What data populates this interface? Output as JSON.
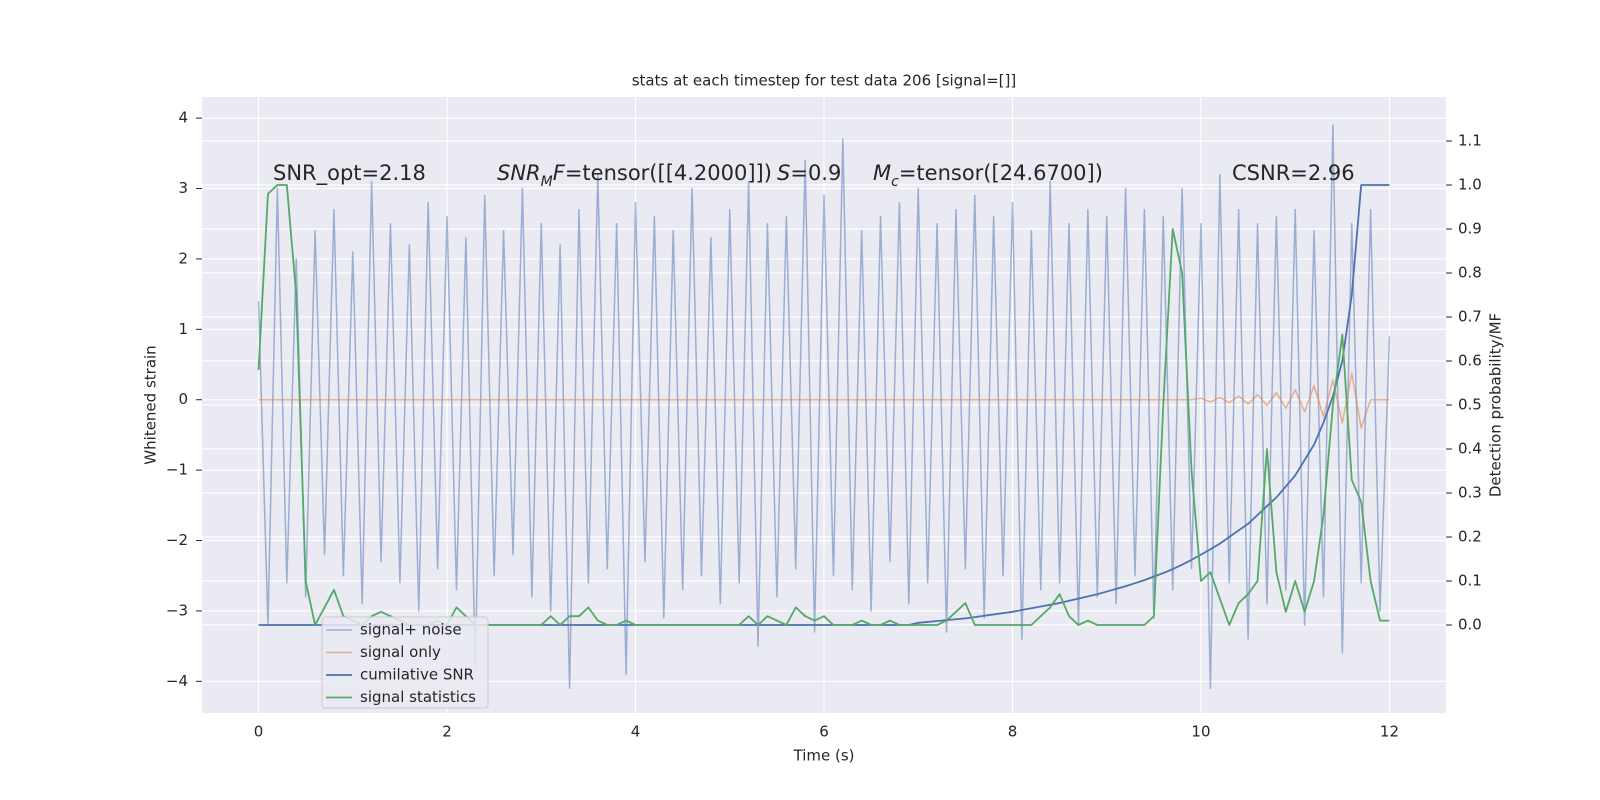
{
  "chart_data": {
    "type": "line",
    "title": "stats at each timestep for test data 206 [signal=[]]",
    "x_label": "Time (s)",
    "y_label": "Whitened strain",
    "y2_label": "Detection probability/MF",
    "annotations": [
      "SNR_opt=2.18",
      [
        "SNR",
        "M",
        "F",
        "=tensor([[4.2000]])"
      ],
      [
        "S",
        "=0.9"
      ],
      [
        "M",
        "c",
        "=tensor([24.6700])"
      ],
      "CSNR=2.96"
    ],
    "x": [
      0,
      0.1,
      0.2,
      0.3,
      0.4,
      0.5,
      0.6,
      0.7,
      0.8,
      0.9,
      1,
      1.1,
      1.2,
      1.3,
      1.4,
      1.5,
      1.6,
      1.7,
      1.8,
      1.9,
      2,
      2.1,
      2.2,
      2.3,
      2.4,
      2.5,
      2.6,
      2.7,
      2.8,
      2.9,
      3,
      3.1,
      3.2,
      3.3,
      3.4,
      3.5,
      3.6,
      3.7,
      3.8,
      3.9,
      4,
      4.1,
      4.2,
      4.3,
      4.4,
      4.5,
      4.6,
      4.7,
      4.8,
      4.9,
      5,
      5.1,
      5.2,
      5.3,
      5.4,
      5.5,
      5.6,
      5.7,
      5.8,
      5.9,
      6,
      6.1,
      6.2,
      6.3,
      6.4,
      6.5,
      6.6,
      6.7,
      6.8,
      6.9,
      7,
      7.1,
      7.2,
      7.3,
      7.4,
      7.5,
      7.6,
      7.7,
      7.8,
      7.9,
      8,
      8.1,
      8.2,
      8.3,
      8.4,
      8.5,
      8.6,
      8.7,
      8.8,
      8.9,
      9,
      9.1,
      9.2,
      9.3,
      9.4,
      9.5,
      9.6,
      9.7,
      9.8,
      9.9,
      10,
      10.1,
      10.2,
      10.3,
      10.4,
      10.5,
      10.6,
      10.7,
      10.8,
      10.9,
      11,
      11.1,
      11.2,
      11.3,
      11.4,
      11.5,
      11.6,
      11.7,
      11.8,
      11.9,
      12
    ],
    "series": [
      {
        "name": "signal+ noise",
        "color": "#4c72b0",
        "alpha": 0.5,
        "width": 1.5,
        "values": [
          1.4,
          -3.2,
          3.0,
          -2.6,
          2.0,
          -2.8,
          2.4,
          -2.2,
          2.7,
          -2.5,
          2.1,
          -2.9,
          3.1,
          -2.3,
          2.5,
          -2.6,
          2.2,
          -3.0,
          2.8,
          -2.4,
          2.6,
          -2.7,
          2.3,
          -3.8,
          2.9,
          -2.5,
          2.4,
          -2.2,
          3.0,
          -2.8,
          2.5,
          -3.0,
          2.2,
          -4.1,
          2.7,
          -2.6,
          3.2,
          -2.4,
          2.5,
          -3.9,
          2.8,
          -2.3,
          2.6,
          -3.1,
          2.4,
          -2.7,
          3.0,
          -2.5,
          2.3,
          -2.9,
          2.7,
          -2.6,
          3.1,
          -3.5,
          2.5,
          -2.8,
          2.6,
          -2.4,
          3.4,
          -3.3,
          2.9,
          -2.5,
          3.7,
          -2.7,
          2.4,
          -3.0,
          2.6,
          -2.3,
          2.8,
          -2.9,
          3.0,
          -2.6,
          2.5,
          -3.3,
          2.7,
          -2.4,
          2.9,
          -3.1,
          2.6,
          -2.5,
          2.8,
          -3.4,
          2.4,
          -2.7,
          3.1,
          -2.6,
          2.5,
          -3.2,
          2.7,
          -2.8,
          2.6,
          -2.9,
          3.0,
          -2.5,
          2.7,
          -3.1,
          2.6,
          -2.7,
          3.0,
          -2.4,
          2.5,
          -4.1,
          3.2,
          -2.6,
          2.7,
          -3.4,
          2.5,
          -2.9,
          2.6,
          -2.7,
          2.7,
          -3.2,
          2.4,
          -2.8,
          3.9,
          -3.6,
          2.5,
          -2.6,
          2.7,
          -3.0,
          0.9
        ]
      },
      {
        "name": "signal only",
        "color": "#dd8452",
        "alpha": 0.6,
        "width": 1.5,
        "values": [
          0,
          0,
          0,
          0,
          0,
          0,
          0,
          0,
          0,
          0,
          0,
          0,
          0,
          0,
          0,
          0,
          0,
          0,
          0,
          0,
          0,
          0,
          0,
          0,
          0,
          0,
          0,
          0,
          0,
          0,
          0,
          0,
          0,
          0,
          0,
          0,
          0,
          0,
          0,
          0,
          0,
          0,
          0,
          0,
          0,
          0,
          0,
          0,
          0,
          0,
          0,
          0,
          0,
          0,
          0,
          0,
          0,
          0,
          0,
          0,
          0,
          0,
          0,
          0,
          0,
          0,
          0,
          0,
          0,
          0,
          0,
          0,
          0,
          0,
          0,
          0,
          0,
          0,
          0,
          0,
          0,
          0,
          0,
          0,
          0,
          0,
          0,
          0,
          0,
          0,
          0,
          0,
          0,
          0,
          0,
          0,
          0,
          0,
          0,
          0,
          0.02,
          -0.03,
          0.03,
          -0.04,
          0.05,
          -0.06,
          0.07,
          -0.08,
          0.1,
          -0.12,
          0.14,
          -0.17,
          0.2,
          -0.24,
          0.28,
          -0.33,
          0.38,
          -0.4,
          0,
          0,
          0
        ]
      },
      {
        "name": "cumilative SNR",
        "color": "#4c72b0",
        "alpha": 1,
        "width": 1.8,
        "axis": "y2",
        "values": [
          0,
          0,
          0,
          0,
          0,
          0,
          0,
          0,
          0,
          0,
          0,
          0,
          0,
          0,
          0,
          0,
          0,
          0,
          0,
          0,
          0,
          0,
          0,
          0,
          0,
          0,
          0,
          0,
          0,
          0,
          0,
          0,
          0,
          0,
          0,
          0,
          0,
          0,
          0,
          0,
          0,
          0,
          0,
          0,
          0,
          0,
          0,
          0,
          0,
          0,
          0,
          0,
          0,
          0,
          0,
          0,
          0,
          0,
          0,
          0,
          0,
          0,
          0,
          0,
          0,
          0,
          0,
          0,
          0,
          0,
          0.005,
          0.007,
          0.009,
          0.011,
          0.013,
          0.015,
          0.018,
          0.021,
          0.024,
          0.027,
          0.03,
          0.034,
          0.038,
          0.042,
          0.046,
          0.05,
          0.055,
          0.06,
          0.065,
          0.07,
          0.076,
          0.082,
          0.088,
          0.095,
          0.102,
          0.11,
          0.118,
          0.127,
          0.137,
          0.148,
          0.16,
          0.172,
          0.185,
          0.2,
          0.215,
          0.23,
          0.25,
          0.27,
          0.29,
          0.315,
          0.34,
          0.375,
          0.41,
          0.46,
          0.52,
          0.6,
          0.75,
          1.0,
          1.0,
          1.0,
          1.0
        ]
      },
      {
        "name": "signal statistics",
        "color": "#55a868",
        "alpha": 1,
        "width": 1.8,
        "axis": "y2",
        "values": [
          0.58,
          0.98,
          1.0,
          1.0,
          0.75,
          0.1,
          0.0,
          0.04,
          0.08,
          0.02,
          0.01,
          0.0,
          0.02,
          0.03,
          0.02,
          0.01,
          0.0,
          0.0,
          0.0,
          0.01,
          0.0,
          0.04,
          0.02,
          0.0,
          0.0,
          0.0,
          0.0,
          0.0,
          0.0,
          0.0,
          0.0,
          0.02,
          0.0,
          0.02,
          0.02,
          0.04,
          0.01,
          0.0,
          0.0,
          0.01,
          0,
          0,
          0,
          0,
          0,
          0,
          0,
          0,
          0,
          0,
          0,
          0,
          0.02,
          0,
          0.02,
          0.01,
          0,
          0.04,
          0.02,
          0.01,
          0.02,
          0,
          0,
          0,
          0.01,
          0,
          0,
          0.01,
          0,
          0,
          0,
          0,
          0,
          0.01,
          0.03,
          0.05,
          0,
          0,
          0,
          0,
          0,
          0,
          0,
          0.02,
          0.04,
          0.07,
          0.02,
          0,
          0.01,
          0,
          0,
          0,
          0,
          0,
          0,
          0.02,
          0.5,
          0.9,
          0.8,
          0.35,
          0.1,
          0.12,
          0.06,
          0.0,
          0.05,
          0.07,
          0.1,
          0.4,
          0.12,
          0.03,
          0.1,
          0.03,
          0.1,
          0.25,
          0.5,
          0.66,
          0.33,
          0.28,
          0.1,
          0.01,
          0.01
        ]
      }
    ],
    "xlim": [
      -0.6,
      12.6
    ],
    "ylim": [
      -4.45,
      4.3
    ],
    "y2lim": [
      -0.2,
      1.2
    ],
    "xticks": [
      0,
      2,
      4,
      6,
      8,
      10,
      12
    ],
    "yticks": [
      {
        "value": -4,
        "label": "−4"
      },
      {
        "value": -3,
        "label": "−3"
      },
      {
        "value": -2,
        "label": "−2"
      },
      {
        "value": -1,
        "label": "−1"
      },
      0,
      1,
      2,
      3,
      4
    ],
    "y2ticks": [
      {
        "value": 0,
        "label": "0.0"
      },
      0.1,
      0.2,
      0.3,
      0.4,
      0.5,
      0.6,
      0.7,
      0.8,
      0.9,
      {
        "value": 1,
        "label": "1.0"
      },
      1.1
    ],
    "grid": true,
    "legend": "lower left",
    "background": "#eaeaf2"
  }
}
